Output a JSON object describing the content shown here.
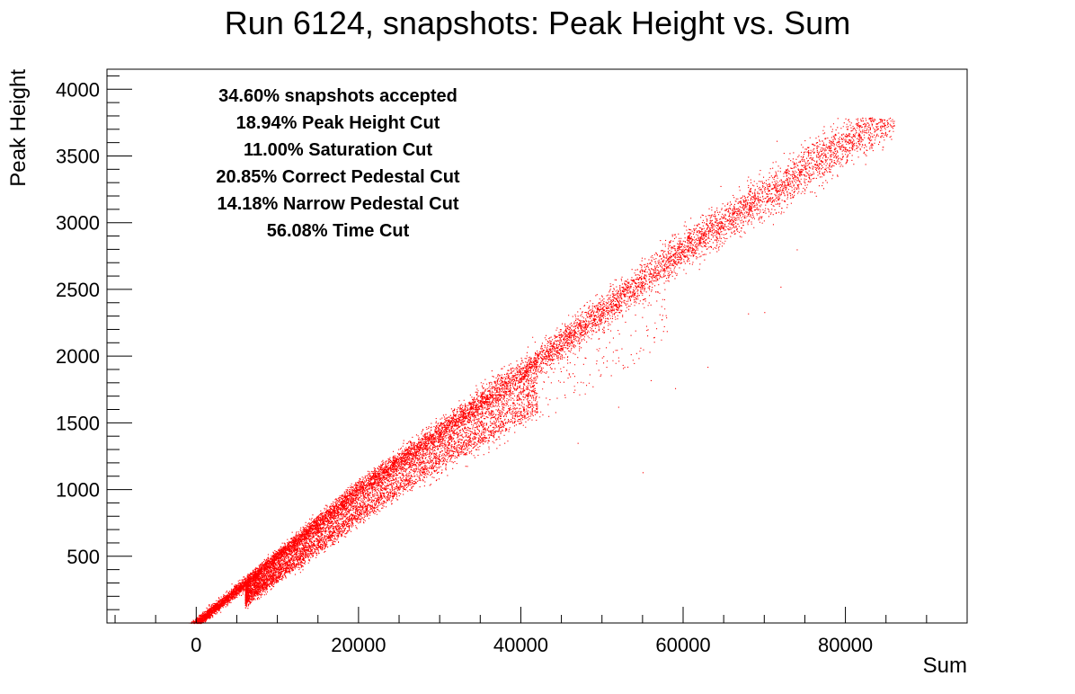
{
  "chart_data": {
    "type": "scatter",
    "title": "Run 6124, snapshots: Peak Height vs. Sum",
    "xlabel": "Sum",
    "ylabel": "Peak Height",
    "xlim": [
      -11000,
      95000
    ],
    "ylim": [
      0,
      4150
    ],
    "x_ticks": [
      0,
      20000,
      40000,
      60000,
      80000
    ],
    "y_ticks": [
      500,
      1000,
      1500,
      2000,
      2500,
      3000,
      3500,
      4000
    ],
    "x_minor_step": 5000,
    "y_minor_step": 100,
    "grid": false,
    "marker_color": "#ff0000",
    "annotations": [
      "34.60% snapshots accepted",
      "18.94% Peak Height Cut",
      "11.00% Saturation Cut",
      "20.85% Correct Pedestal Cut",
      "14.18% Narrow Pedestal Cut",
      "56.08% Time Cut"
    ],
    "main_band": {
      "description_points": [
        [
          0,
          0
        ],
        [
          10000,
          500
        ],
        [
          20000,
          1000
        ],
        [
          40000,
          1870
        ],
        [
          60000,
          2800
        ],
        [
          84000,
          3760
        ]
      ]
    },
    "lower_wing": {
      "description_points": [
        [
          10000,
          330
        ],
        [
          20000,
          760
        ],
        [
          30000,
          1180
        ],
        [
          40000,
          1520
        ]
      ]
    },
    "outliers": [
      [
        45000,
        2080
      ],
      [
        50000,
        1990
      ],
      [
        56000,
        1820
      ],
      [
        59000,
        1760
      ],
      [
        63000,
        1920
      ],
      [
        68000,
        2320
      ],
      [
        70000,
        2330
      ],
      [
        72000,
        2520
      ],
      [
        47000,
        1350
      ],
      [
        52000,
        1620
      ],
      [
        55000,
        1130
      ],
      [
        74000,
        2800
      ]
    ]
  }
}
